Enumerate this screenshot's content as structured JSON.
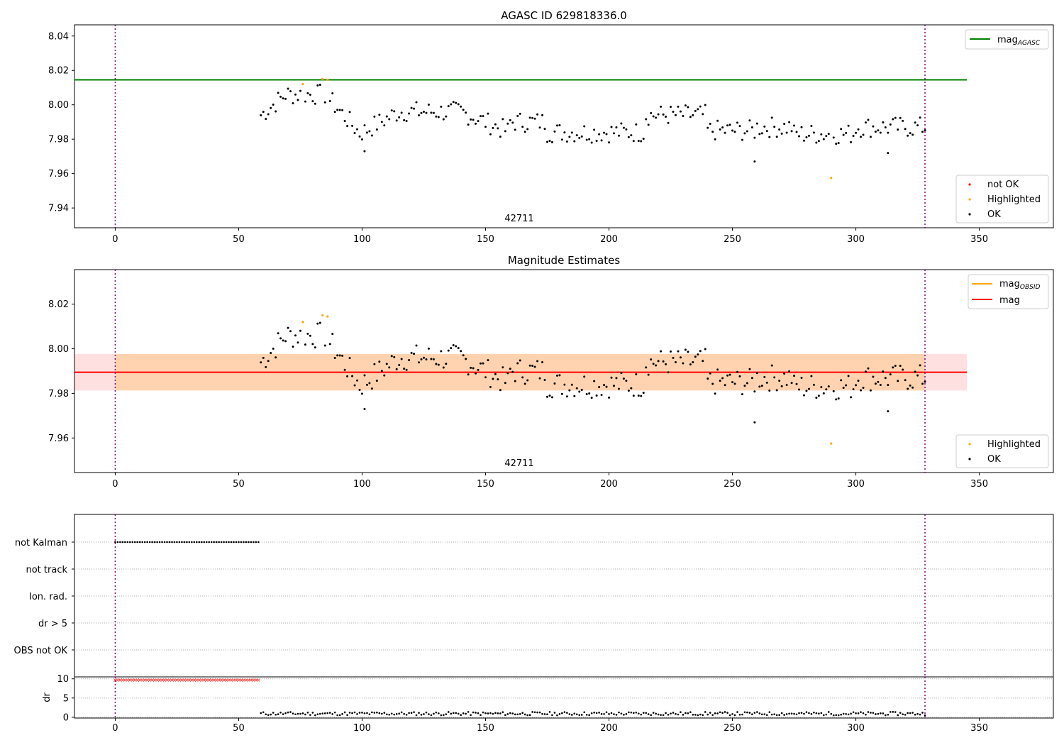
{
  "chart_data": [
    {
      "type": "scatter",
      "title": "AGASC ID 629818336.0",
      "xlabel": "",
      "ylabel": "",
      "xlim": [
        -16.5,
        380
      ],
      "ylim": [
        7.9285,
        8.0465
      ],
      "xticks": [
        0,
        50,
        100,
        150,
        200,
        250,
        300,
        350
      ],
      "yticks": [
        7.94,
        7.96,
        7.98,
        8.0,
        8.02,
        8.04
      ],
      "annotation": "42711",
      "vlines": [
        0,
        328
      ],
      "hline": {
        "name": "mag_AGASC",
        "value": 8.0145,
        "x_range": [
          -16.5,
          345
        ],
        "color": "#008000"
      },
      "legend_lines": [
        {
          "label_main": "mag",
          "label_sub": "AGASC",
          "color": "#008000"
        }
      ],
      "legend_points": [
        {
          "label": "not OK",
          "color": "#ff0000"
        },
        {
          "label": "Highlighted",
          "color": "#ffa500"
        },
        {
          "label": "OK",
          "color": "#000000"
        }
      ],
      "highlighted_points": [
        [
          76,
          8.012
        ],
        [
          84,
          8.015
        ],
        [
          86,
          8.0145
        ],
        [
          290,
          7.9575
        ]
      ],
      "series_ok_x_range": [
        59,
        328
      ]
    },
    {
      "type": "scatter",
      "title": "Magnitude Estimates",
      "xlabel": "",
      "ylabel": "",
      "xlim": [
        -16.5,
        380
      ],
      "ylim": [
        7.9445,
        8.0355
      ],
      "xticks": [
        0,
        50,
        100,
        150,
        200,
        250,
        300,
        350
      ],
      "yticks": [
        7.96,
        7.98,
        8.0,
        8.02
      ],
      "annotation": "42711",
      "vlines": [
        0,
        328
      ],
      "mag_line": {
        "value": 7.9895,
        "band": [
          7.9813,
          7.9977
        ],
        "x_range": [
          -16.5,
          345
        ],
        "color": "#ff0000"
      },
      "mag_obsid_band": {
        "band": [
          7.9813,
          7.9977
        ],
        "x_range": [
          0,
          328
        ],
        "color": "#ffa500"
      },
      "legend_lines": [
        {
          "label_main": "mag",
          "label_sub": "OBSID",
          "color": "#ffa500"
        },
        {
          "label_main": "mag",
          "label_sub": "",
          "color": "#ff0000"
        }
      ],
      "legend_points": [
        {
          "label": "Highlighted",
          "color": "#ffa500"
        },
        {
          "label": "OK",
          "color": "#000000"
        }
      ],
      "highlighted_points": [
        [
          76,
          8.012
        ],
        [
          84,
          8.015
        ],
        [
          86,
          8.0145
        ],
        [
          290,
          7.9575
        ]
      ]
    },
    {
      "type": "scatter",
      "title": "",
      "xlabel": "",
      "ylabel": "",
      "xlim": [
        -16.5,
        380
      ],
      "categories": [
        "not Kalman",
        "not track",
        "Ion. rad.",
        "dr > 5",
        "OBS not OK"
      ],
      "not_kalman_x_range": [
        0,
        58
      ],
      "vlines": [
        0,
        328
      ]
    },
    {
      "type": "scatter",
      "title": "",
      "xlabel": "",
      "ylabel": "dr",
      "xlim": [
        -16.5,
        380
      ],
      "ylim": [
        -0.2,
        10.5
      ],
      "yticks": [
        0,
        5,
        10
      ],
      "dr_high": {
        "x_range": [
          0,
          58
        ],
        "value": 9.8,
        "color": "#ff0000"
      },
      "dr_low_x_range": [
        59,
        328
      ],
      "vlines": [
        0,
        328
      ]
    }
  ],
  "colors": {
    "ok": "#000000",
    "highlighted": "#ffa500",
    "not_ok": "#ff0000",
    "agasc_line": "#008000",
    "mag_line": "#ff0000",
    "vline": "#800080"
  }
}
